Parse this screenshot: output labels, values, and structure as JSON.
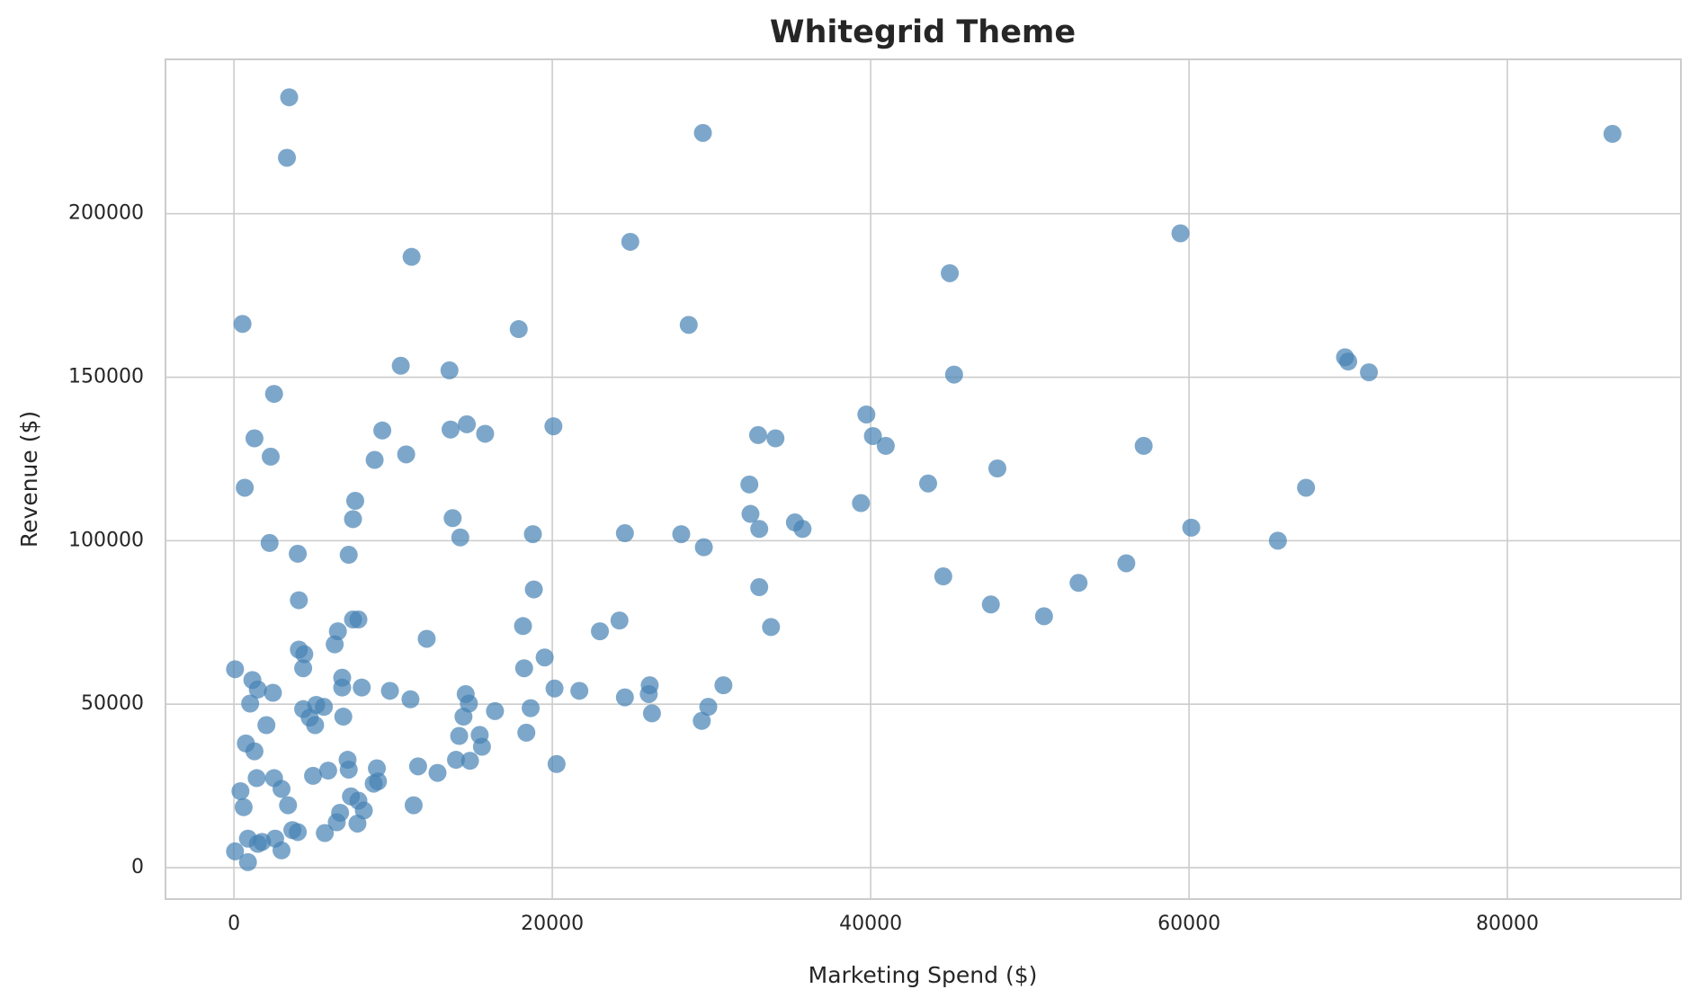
{
  "chart_data": {
    "type": "scatter",
    "title": "Whitegrid Theme",
    "x_label": "Marketing Spend ($)",
    "y_label": "Revenue ($)",
    "xlim": [
      -4300,
      90900
    ],
    "ylim": [
      -9600,
      247200
    ],
    "xticks": [
      0,
      20000,
      40000,
      60000,
      80000
    ],
    "yticks": [
      0,
      50000,
      100000,
      150000,
      200000
    ],
    "grid": true,
    "x": [
      3470,
      3330,
      29460,
      86600,
      59460,
      24900,
      11160,
      44970,
      540,
      17890,
      28570,
      69800,
      70000,
      71300,
      45240,
      10480,
      13540,
      2520,
      1290,
      9320,
      13610,
      14630,
      15780,
      20070,
      32930,
      34020,
      39730,
      40140,
      40950,
      57150,
      10820,
      2310,
      8840,
      47960,
      680,
      32380,
      43610,
      67350,
      7620,
      39390,
      13740,
      7480,
      32450,
      35240,
      33000,
      35720,
      2240,
      14220,
      18780,
      24560,
      28100,
      60140,
      65580,
      4010,
      7210,
      29520,
      56060,
      44560,
      53060,
      33000,
      18840,
      4080,
      47550,
      50890,
      7480,
      7820,
      24220,
      18160,
      33740,
      22990,
      6530,
      12110,
      6330,
      4080,
      4420,
      19520,
      70,
      4350,
      18230,
      1160,
      6800,
      1500,
      2450,
      6800,
      8030,
      9800,
      20140,
      21700,
      26120,
      30750,
      14560,
      26060,
      24560,
      11090,
      1020,
      5170,
      5650,
      14760,
      4350,
      18640,
      29800,
      16400,
      26260,
      4760,
      6870,
      14420,
      29390,
      5100,
      2040,
      18370,
      14150,
      15440,
      750,
      15580,
      1290,
      7140,
      13950,
      14830,
      20270,
      11570,
      8980,
      7210,
      5920,
      4970,
      12790,
      1430,
      2520,
      9050,
      8780,
      2990,
      410,
      7350,
      7820,
      3400,
      8160,
      11290,
      610,
      6670,
      6460,
      7760,
      3670,
      4010,
      5710,
      880,
      2590,
      1770,
      1500,
      70,
      2990,
      880
    ],
    "series": [
      {
        "color": "#4682b4",
        "values": [
          235600,
          217100,
          224700,
          224400,
          194000,
          191400,
          186800,
          181800,
          166300,
          164700,
          166000,
          156100,
          154800,
          151500,
          150800,
          153500,
          152100,
          144900,
          131300,
          133700,
          134000,
          135600,
          132700,
          135000,
          132300,
          131300,
          138600,
          132000,
          129000,
          129000,
          126400,
          125700,
          124700,
          122100,
          116200,
          117200,
          117500,
          116200,
          112200,
          111500,
          106900,
          106600,
          108200,
          105600,
          103600,
          103600,
          99300,
          101000,
          102000,
          102300,
          102000,
          104000,
          100000,
          96000,
          95700,
          98000,
          93100,
          89100,
          87100,
          85800,
          85100,
          81800,
          80500,
          76900,
          75900,
          75900,
          75600,
          73900,
          73600,
          72300,
          72300,
          70000,
          68300,
          66700,
          65300,
          64300,
          60700,
          61000,
          61000,
          57400,
          58100,
          54500,
          53500,
          55100,
          55100,
          54100,
          54800,
          54100,
          55800,
          55800,
          53100,
          53100,
          52100,
          51500,
          50200,
          49800,
          49200,
          50200,
          48500,
          48800,
          49200,
          47900,
          47200,
          45900,
          46200,
          46200,
          44900,
          43600,
          43600,
          41300,
          40300,
          40600,
          38000,
          37000,
          35600,
          33000,
          33000,
          32700,
          31700,
          31000,
          30400,
          30000,
          29700,
          28100,
          29000,
          27400,
          27400,
          26400,
          25700,
          24100,
          23400,
          21800,
          20500,
          19100,
          17500,
          19100,
          18500,
          16800,
          13900,
          13500,
          11500,
          10900,
          10600,
          8900,
          8900,
          7900,
          7300,
          5000,
          5300,
          1700
        ]
      }
    ]
  }
}
